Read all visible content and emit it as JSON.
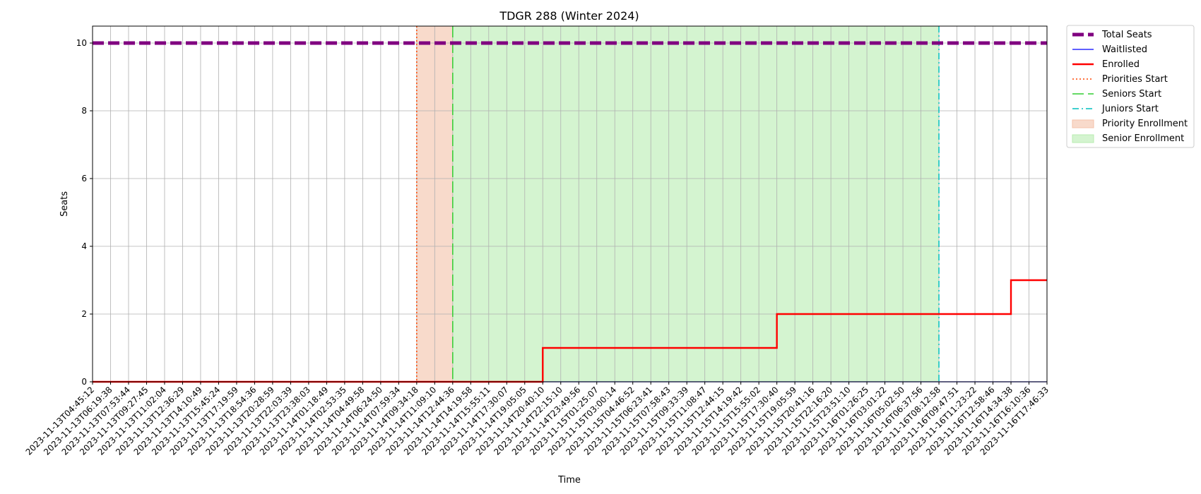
{
  "chart_data": {
    "type": "line",
    "title": "TDGR 288 (Winter 2024)",
    "xlabel": "Time",
    "ylabel": "Seats",
    "ylim": [
      0,
      10.5
    ],
    "yticks": [
      0,
      2,
      4,
      6,
      8,
      10
    ],
    "grid": true,
    "legend_position": "outside-top-right",
    "x": [
      "2023-11-13T04:45:12",
      "2023-11-13T06:19:38",
      "2023-11-13T07:53:44",
      "2023-11-13T09:27:45",
      "2023-11-13T11:02:04",
      "2023-11-13T12:36:29",
      "2023-11-13T14:10:49",
      "2023-11-13T15:45:24",
      "2023-11-13T17:19:59",
      "2023-11-13T18:54:36",
      "2023-11-13T20:28:59",
      "2023-11-13T22:03:39",
      "2023-11-13T23:38:03",
      "2023-11-14T01:18:49",
      "2023-11-14T02:53:35",
      "2023-11-14T04:49:58",
      "2023-11-14T06:24:50",
      "2023-11-14T07:59:34",
      "2023-11-14T09:34:18",
      "2023-11-14T11:09:10",
      "2023-11-14T12:44:36",
      "2023-11-14T14:19:58",
      "2023-11-14T15:55:11",
      "2023-11-14T17:30:07",
      "2023-11-14T19:05:05",
      "2023-11-14T20:40:10",
      "2023-11-14T22:15:10",
      "2023-11-14T23:49:56",
      "2023-11-15T01:25:07",
      "2023-11-15T03:00:14",
      "2023-11-15T04:46:52",
      "2023-11-15T06:23:41",
      "2023-11-15T07:58:43",
      "2023-11-15T09:33:39",
      "2023-11-15T11:08:47",
      "2023-11-15T12:44:15",
      "2023-11-15T14:19:42",
      "2023-11-15T15:55:02",
      "2023-11-15T17:30:40",
      "2023-11-15T19:05:59",
      "2023-11-15T20:41:16",
      "2023-11-15T22:16:20",
      "2023-11-15T23:51:10",
      "2023-11-16T01:26:25",
      "2023-11-16T03:01:22",
      "2023-11-16T05:02:50",
      "2023-11-16T06:37:56",
      "2023-11-16T08:12:58",
      "2023-11-16T09:47:51",
      "2023-11-16T11:23:22",
      "2023-11-16T12:58:46",
      "2023-11-16T14:34:38",
      "2023-11-16T16:10:36",
      "2023-11-16T17:46:33"
    ],
    "series": [
      {
        "name": "Total Seats",
        "color": "#800080",
        "style": "dashed",
        "values": [
          10,
          10,
          10,
          10,
          10,
          10,
          10,
          10,
          10,
          10,
          10,
          10,
          10,
          10,
          10,
          10,
          10,
          10,
          10,
          10,
          10,
          10,
          10,
          10,
          10,
          10,
          10,
          10,
          10,
          10,
          10,
          10,
          10,
          10,
          10,
          10,
          10,
          10,
          10,
          10,
          10,
          10,
          10,
          10,
          10,
          10,
          10,
          10,
          10,
          10,
          10,
          10,
          10,
          10
        ]
      },
      {
        "name": "Waitlisted",
        "color": "#0000ff",
        "style": "solid",
        "values": [
          0,
          0,
          0,
          0,
          0,
          0,
          0,
          0,
          0,
          0,
          0,
          0,
          0,
          0,
          0,
          0,
          0,
          0,
          0,
          0,
          0,
          0,
          0,
          0,
          0,
          0,
          0,
          0,
          0,
          0,
          0,
          0,
          0,
          0,
          0,
          0,
          0,
          0,
          0,
          0,
          0,
          0,
          0,
          0,
          0,
          0,
          0,
          0,
          0,
          0,
          0,
          0,
          0,
          0
        ]
      },
      {
        "name": "Enrolled",
        "color": "#ff0000",
        "style": "solid",
        "values": [
          0,
          0,
          0,
          0,
          0,
          0,
          0,
          0,
          0,
          0,
          0,
          0,
          0,
          0,
          0,
          0,
          0,
          0,
          0,
          0,
          0,
          0,
          0,
          0,
          0,
          1,
          1,
          1,
          1,
          1,
          1,
          1,
          1,
          1,
          1,
          1,
          1,
          1,
          2,
          2,
          2,
          2,
          2,
          2,
          2,
          2,
          2,
          2,
          2,
          2,
          2,
          3,
          3,
          3
        ]
      }
    ],
    "markers": [
      {
        "name": "Priorities Start",
        "x": "2023-11-14T09:34:18",
        "color": "#ff4500",
        "style": "dotted"
      },
      {
        "name": "Seniors Start",
        "x": "2023-11-14T12:44:36",
        "color": "#32cd32",
        "style": "dashed"
      },
      {
        "name": "Juniors Start",
        "x": "2023-11-16T08:12:58",
        "color": "#00bfbf",
        "style": "dashdot"
      }
    ],
    "spans": [
      {
        "name": "Priority Enrollment",
        "from": "2023-11-14T09:34:18",
        "to": "2023-11-14T12:44:36",
        "color": "#f4c2a8"
      },
      {
        "name": "Senior Enrollment",
        "from": "2023-11-14T12:44:36",
        "to": "2023-11-16T08:12:58",
        "color": "#b8ecb0"
      }
    ]
  }
}
